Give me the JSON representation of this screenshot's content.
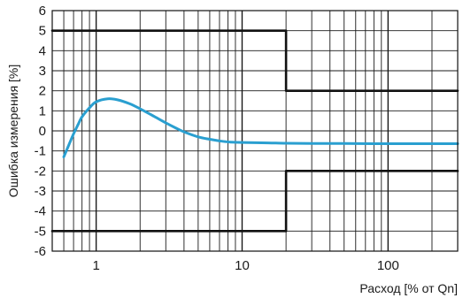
{
  "chart_data": {
    "type": "line",
    "title": "",
    "xlabel": "Расход [% от Qn]",
    "ylabel": "Ошибка измерения [%]",
    "x_scale": "log",
    "xlim": [
      0.5,
      300
    ],
    "ylim": [
      -6,
      6
    ],
    "x_ticks": [
      1,
      10,
      100
    ],
    "x_tick_labels": [
      "1",
      "10",
      "100"
    ],
    "y_ticks": [
      6,
      5,
      4,
      3,
      2,
      1,
      0,
      -1,
      -2,
      -3,
      -4,
      -5,
      -6
    ],
    "y_tick_labels": [
      "6",
      "5",
      "4",
      "3",
      "2",
      "1",
      "0",
      "-1",
      "-2",
      "-3",
      "-4",
      "-5",
      "-6"
    ],
    "grid": true,
    "legend": "none",
    "series": [
      {
        "role": "measurement-error-curve",
        "color": "#2a9fd0",
        "x": [
          0.6,
          0.65,
          0.7,
          0.75,
          0.8,
          0.9,
          1.0,
          1.2,
          1.4,
          1.7,
          2.0,
          2.5,
          3.0,
          3.5,
          4.0,
          5.0,
          6.0,
          7.0,
          8.0,
          10.0,
          15.0,
          20.0,
          30.0,
          50.0,
          100.0,
          200.0,
          300.0
        ],
        "y": [
          -1.3,
          -0.7,
          -0.15,
          0.3,
          0.7,
          1.15,
          1.45,
          1.6,
          1.55,
          1.35,
          1.1,
          0.72,
          0.4,
          0.15,
          -0.05,
          -0.3,
          -0.42,
          -0.5,
          -0.55,
          -0.58,
          -0.6,
          -0.62,
          -0.63,
          -0.63,
          -0.64,
          -0.64,
          -0.64
        ]
      },
      {
        "role": "upper-error-limit",
        "color": "#111111",
        "step": true,
        "x": [
          0.5,
          20,
          20,
          300
        ],
        "y": [
          5,
          5,
          2,
          2
        ]
      },
      {
        "role": "lower-error-limit",
        "color": "#111111",
        "step": true,
        "x": [
          0.5,
          20,
          20,
          300
        ],
        "y": [
          -5,
          -5,
          -2,
          -2
        ]
      }
    ]
  }
}
